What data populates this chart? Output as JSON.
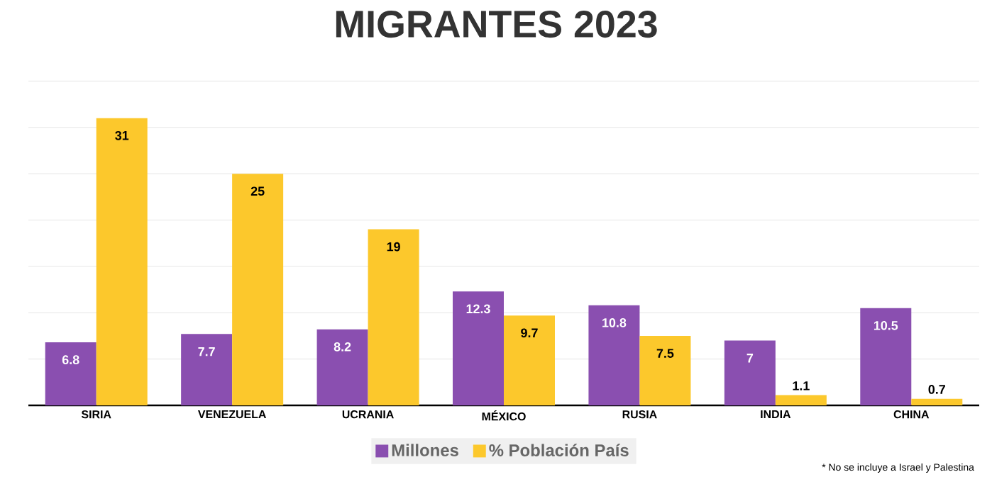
{
  "chart_data": {
    "type": "bar",
    "title": "MIGRANTES 2023",
    "categories": [
      "SIRIA",
      "VENEZUELA",
      "UCRANIA",
      "MÉXICO",
      "RUSIA",
      "INDIA",
      "CHINA"
    ],
    "series": [
      {
        "name": "Millones",
        "color": "#8a4fb0",
        "values": [
          6.8,
          7.7,
          8.2,
          12.3,
          10.8,
          7,
          10.5
        ]
      },
      {
        "name": "% Población País",
        "color": "#fcc82c",
        "values": [
          31,
          25,
          19,
          9.7,
          7.5,
          1.1,
          0.7
        ]
      }
    ],
    "data_labels": true,
    "tick_labels": "x",
    "grid": "y",
    "legend": "bottom",
    "annotations": [
      "* No se incluye a Israel y Palestina"
    ]
  }
}
